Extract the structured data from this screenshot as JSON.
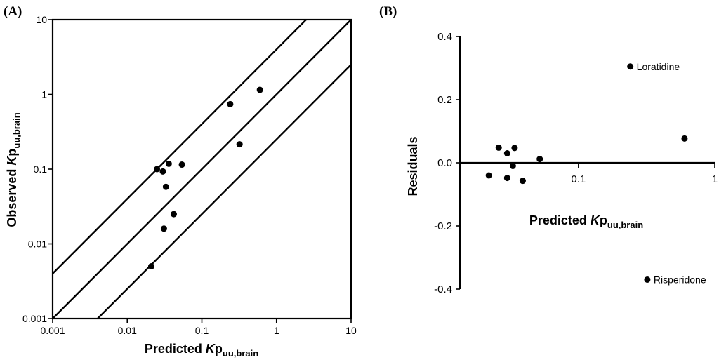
{
  "chart_data": [
    {
      "panel": "(A)",
      "type": "scatter",
      "xscale": "log",
      "yscale": "log",
      "xlim": [
        0.001,
        10
      ],
      "ylim": [
        0.001,
        10
      ],
      "xticks": [
        "0.001",
        "0.01",
        "0.1",
        "1",
        "10"
      ],
      "yticks": [
        "0.001",
        "0.01",
        "0.1",
        "1",
        "10"
      ],
      "xlabel": {
        "main": "Predicted ",
        "italic": "K",
        "rest": "p",
        "sub": "uu,brain"
      },
      "ylabel": {
        "main": "Observed ",
        "italic": "K",
        "rest": "p",
        "sub": "uu,brain"
      },
      "lines": [
        {
          "name": "lower fold line",
          "factor": 0.25
        },
        {
          "name": "line of unity",
          "factor": 1
        },
        {
          "name": "upper fold line",
          "factor": 4
        }
      ],
      "points": [
        {
          "x": 0.021,
          "y": 0.005
        },
        {
          "x": 0.025,
          "y": 0.1
        },
        {
          "x": 0.03,
          "y": 0.093
        },
        {
          "x": 0.031,
          "y": 0.016
        },
        {
          "x": 0.033,
          "y": 0.058
        },
        {
          "x": 0.036,
          "y": 0.118
        },
        {
          "x": 0.042,
          "y": 0.025
        },
        {
          "x": 0.054,
          "y": 0.115
        },
        {
          "x": 0.24,
          "y": 0.74
        },
        {
          "x": 0.32,
          "y": 0.215
        },
        {
          "x": 0.6,
          "y": 1.15
        }
      ]
    },
    {
      "panel": "(B)",
      "type": "scatter",
      "xscale": "log",
      "yscale": "linear",
      "xlim": [
        0.0135,
        1
      ],
      "ylim": [
        -0.4,
        0.4
      ],
      "xticks": [
        "0.1",
        "1"
      ],
      "yticks": [
        "0.4",
        "0.2",
        "0.0",
        "-0.2",
        "-0.4"
      ],
      "xlabel": {
        "main": "Predicted ",
        "italic": "K",
        "rest": "p",
        "sub": "uu,brain"
      },
      "ylabel": "Residuals",
      "points": [
        {
          "x": 0.022,
          "y": -0.04
        },
        {
          "x": 0.026,
          "y": 0.048
        },
        {
          "x": 0.03,
          "y": 0.03
        },
        {
          "x": 0.03,
          "y": -0.048
        },
        {
          "x": 0.033,
          "y": -0.01
        },
        {
          "x": 0.034,
          "y": 0.047
        },
        {
          "x": 0.039,
          "y": -0.057
        },
        {
          "x": 0.052,
          "y": 0.012
        },
        {
          "x": 0.24,
          "y": 0.305,
          "label": "Loratidine"
        },
        {
          "x": 0.6,
          "y": 0.077
        },
        {
          "x": 0.32,
          "y": -0.37,
          "label": "Risperidone"
        }
      ]
    }
  ]
}
